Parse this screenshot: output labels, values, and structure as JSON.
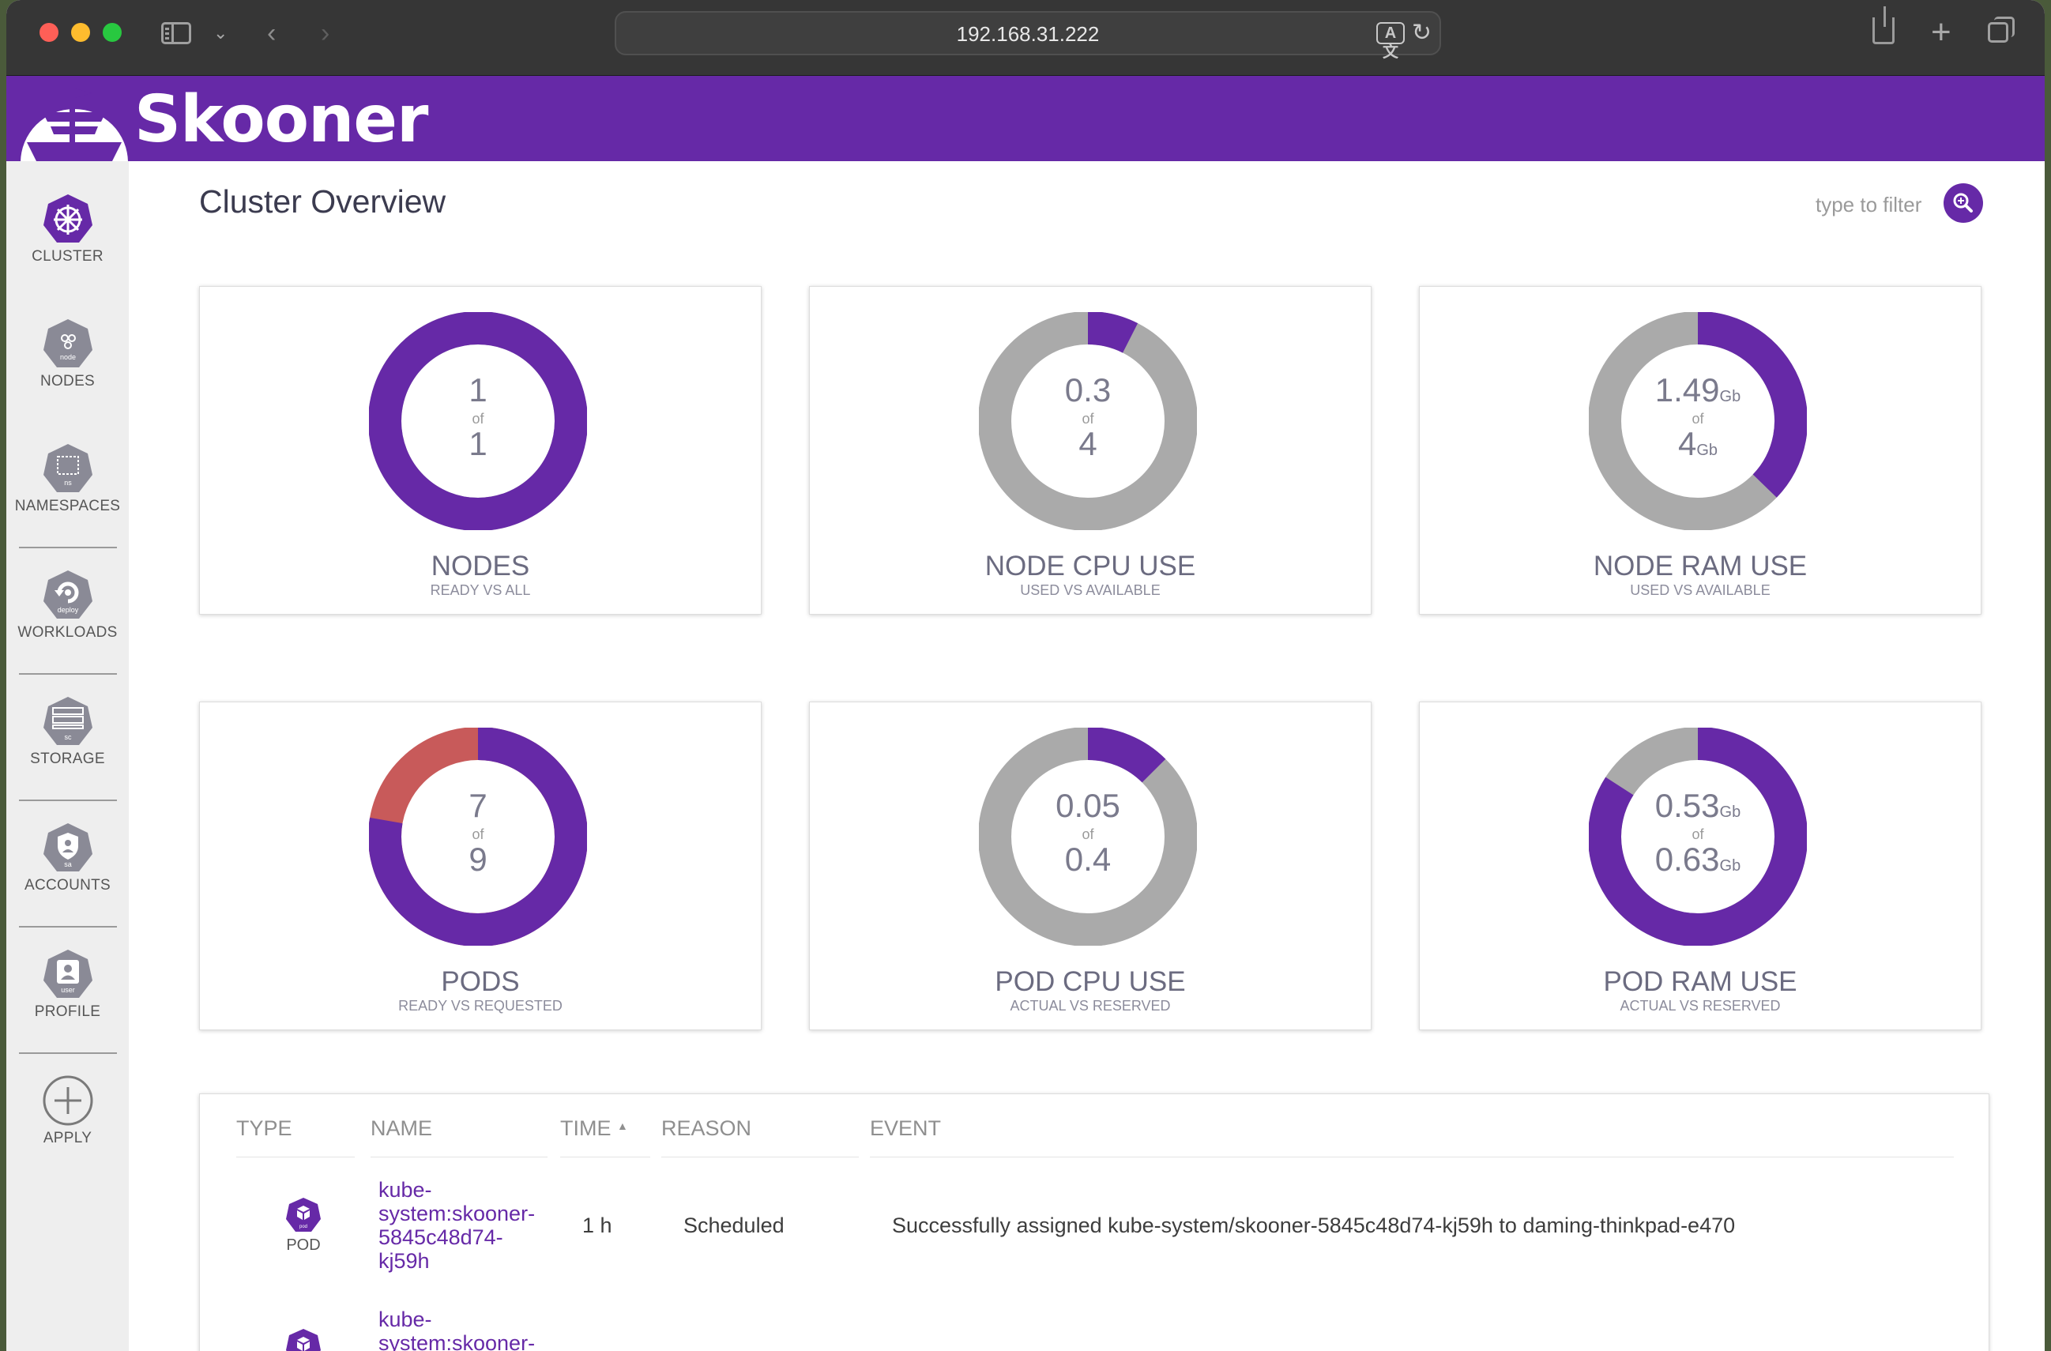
{
  "browser": {
    "url": "192.168.31.222",
    "translate_glyph": "A文"
  },
  "app": {
    "brand": "Skooner"
  },
  "nav": {
    "items": [
      {
        "label": "CLUSTER",
        "icon_text": ""
      },
      {
        "label": "NODES",
        "icon_text": "node"
      },
      {
        "label": "NAMESPACES",
        "icon_text": "ns"
      },
      {
        "label": "WORKLOADS",
        "icon_text": "deploy"
      },
      {
        "label": "STORAGE",
        "icon_text": "sc"
      },
      {
        "label": "ACCOUNTS",
        "icon_text": "sa"
      },
      {
        "label": "PROFILE",
        "icon_text": "user"
      },
      {
        "label": "APPLY",
        "icon_text": ""
      }
    ]
  },
  "page": {
    "title": "Cluster Overview",
    "filter_placeholder": "type to filter"
  },
  "cards": [
    {
      "title": "NODES",
      "subtitle": "READY VS ALL",
      "top": "1",
      "of": "of",
      "bottom": "1",
      "top_unit": "",
      "bottom_unit": "",
      "used_fraction": 1.0
    },
    {
      "title": "NODE CPU USE",
      "subtitle": "USED VS AVAILABLE",
      "top": "0.3",
      "of": "of",
      "bottom": "4",
      "top_unit": "",
      "bottom_unit": "",
      "used_fraction": 0.075
    },
    {
      "title": "NODE RAM USE",
      "subtitle": "USED VS AVAILABLE",
      "top": "1.49",
      "of": "of",
      "bottom": "4",
      "top_unit": "Gb",
      "bottom_unit": "Gb",
      "used_fraction": 0.3725
    },
    {
      "title": "PODS",
      "subtitle": "READY VS REQUESTED",
      "top": "7",
      "of": "of",
      "bottom": "9",
      "top_unit": "",
      "bottom_unit": "",
      "used_fraction": 0.7778,
      "remainder_color": "#c85a5a"
    },
    {
      "title": "POD CPU USE",
      "subtitle": "ACTUAL VS RESERVED",
      "top": "0.05",
      "of": "of",
      "bottom": "0.4",
      "top_unit": "",
      "bottom_unit": "",
      "used_fraction": 0.125
    },
    {
      "title": "POD RAM USE",
      "subtitle": "ACTUAL VS RESERVED",
      "top": "0.53",
      "of": "of",
      "bottom": "0.63",
      "top_unit": "Gb",
      "bottom_unit": "Gb",
      "used_fraction": 0.8413
    }
  ],
  "colors": {
    "accent": "#6629a7",
    "ring_bg": "#aaaaaa",
    "pods_unready": "#c85a5a"
  },
  "events": {
    "headers": {
      "type": "TYPE",
      "name": "NAME",
      "time": "TIME",
      "reason": "REASON",
      "event": "EVENT"
    },
    "rows": [
      {
        "type": "POD",
        "pod_icon_text": "pod",
        "name_lines": [
          "kube-",
          "system:skooner-",
          "5845c48d74-",
          "kj59h"
        ],
        "time": "1 h",
        "reason": "Scheduled",
        "event": "Successfully assigned kube-system/skooner-5845c48d74-kj59h to daming-thinkpad-e470"
      },
      {
        "type": "POD",
        "pod_icon_text": "pod",
        "name_lines": [
          "kube-",
          "system:skooner-"
        ],
        "time": "",
        "reason": "",
        "event": ""
      }
    ]
  }
}
